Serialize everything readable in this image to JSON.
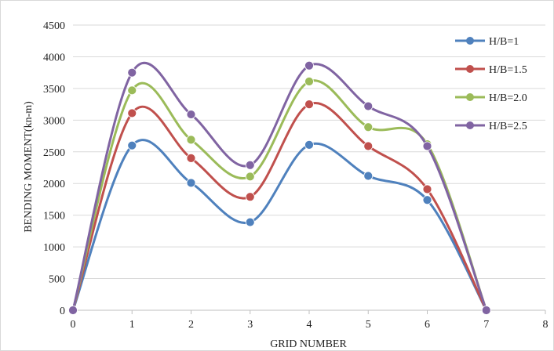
{
  "chart_data": {
    "type": "line",
    "title": "",
    "xlabel": "GRID NUMBER",
    "ylabel": "BENDING MOMENT(kn-m)",
    "xlim": [
      0,
      8
    ],
    "ylim": [
      0,
      4500
    ],
    "x_ticks": [
      0,
      1,
      2,
      3,
      4,
      5,
      6,
      7,
      8
    ],
    "y_ticks": [
      0,
      500,
      1000,
      1500,
      2000,
      2500,
      3000,
      3500,
      4000,
      4500
    ],
    "grid": "horizontal",
    "legend_position": "right",
    "smooth": true,
    "x": [
      0,
      1,
      2,
      3,
      4,
      5,
      6,
      7
    ],
    "series": [
      {
        "name": "H/B=1",
        "color": "#4f81bd",
        "values": [
          0,
          2600,
          2010,
          1390,
          2610,
          2120,
          1740,
          0
        ]
      },
      {
        "name": "H/B=1.5",
        "color": "#c0504d",
        "values": [
          0,
          3110,
          2400,
          1790,
          3250,
          2590,
          1910,
          0
        ]
      },
      {
        "name": "H/B=2.0",
        "color": "#9bbb59",
        "values": [
          0,
          3470,
          2690,
          2110,
          3610,
          2890,
          2620,
          0
        ]
      },
      {
        "name": "H/B=2.5",
        "color": "#8064a2",
        "values": [
          0,
          3750,
          3090,
          2290,
          3860,
          3220,
          2590,
          0
        ]
      }
    ]
  }
}
